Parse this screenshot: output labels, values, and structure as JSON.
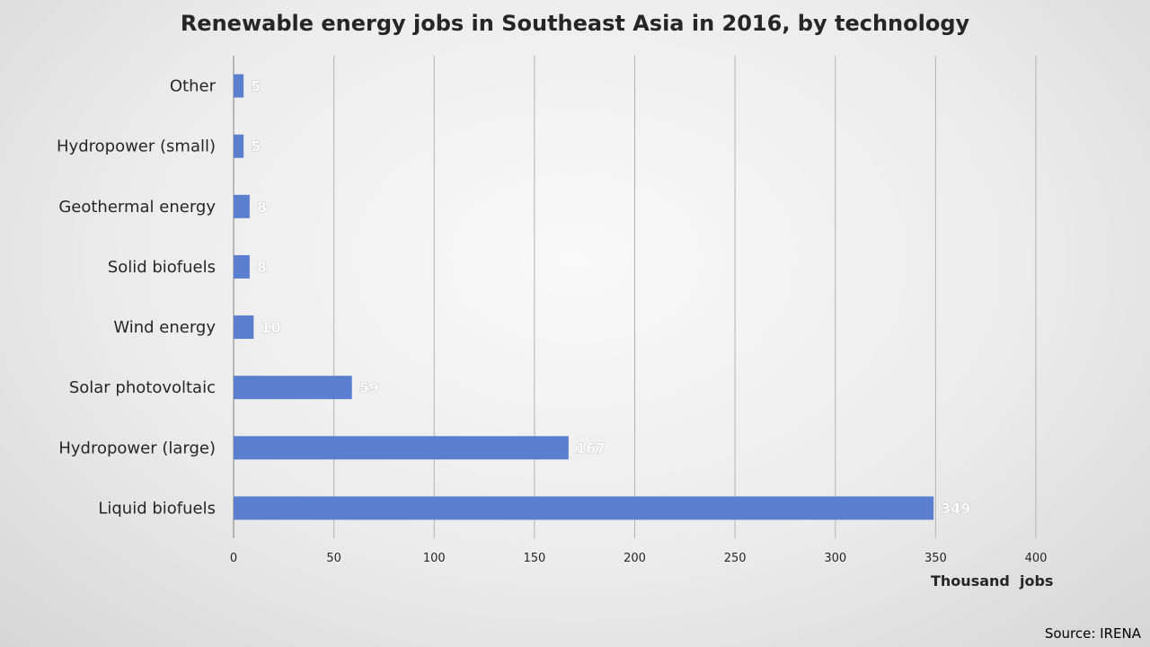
{
  "chart_data": {
    "type": "bar",
    "orientation": "horizontal",
    "title": "Renewable energy jobs in Southeast Asia in 2016, by technology",
    "xlabel": "Thousand  jobs",
    "ylabel": "",
    "categories": [
      "Other",
      "Hydropower (small)",
      "Geothermal energy",
      "Solid biofuels",
      "Wind energy",
      "Solar photovoltaic",
      "Hydropower (large)",
      "Liquid biofuels"
    ],
    "values": [
      5,
      5,
      8,
      8,
      10,
      59,
      167,
      349
    ],
    "data_labels": [
      "5",
      "5",
      "8",
      "8",
      "10",
      "59",
      "167",
      "349"
    ],
    "xlim": [
      0,
      400
    ],
    "x_ticks": [
      "0",
      "50",
      "100",
      "150",
      "200",
      "250",
      "300",
      "350",
      "400"
    ],
    "grid": true,
    "legend": "none",
    "bar_color": "#5b7fcf"
  },
  "source": "Source: IRENA"
}
